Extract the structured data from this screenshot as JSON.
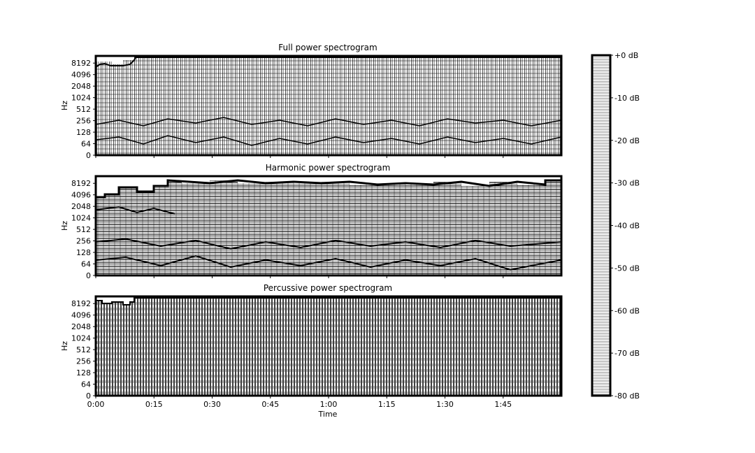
{
  "chart_data": {
    "type": "heatmap",
    "panels": [
      {
        "title": "Full power spectrogram",
        "ylabel": "Hz",
        "yticks": [
          "0",
          "64",
          "128",
          "256",
          "512",
          "1024",
          "2048",
          "4096",
          "8192"
        ],
        "xlabel": "",
        "xticks": []
      },
      {
        "title": "Harmonic power spectrogram",
        "ylabel": "Hz",
        "yticks": [
          "0",
          "64",
          "128",
          "256",
          "512",
          "1024",
          "2048",
          "4096",
          "8192"
        ],
        "xlabel": "",
        "xticks": []
      },
      {
        "title": "Percussive power spectrogram",
        "ylabel": "Hz",
        "yticks": [
          "0",
          "64",
          "128",
          "256",
          "512",
          "1024",
          "2048",
          "4096",
          "8192"
        ],
        "xlabel": "Time",
        "xticks": [
          "0:00",
          "0:15",
          "0:30",
          "0:45",
          "1:00",
          "1:15",
          "1:30",
          "1:45"
        ]
      }
    ],
    "x_range_seconds": [
      0,
      120
    ],
    "colorbar": {
      "ticks": [
        "+0 dB",
        "-10 dB",
        "-20 dB",
        "-30 dB",
        "-40 dB",
        "-50 dB",
        "-60 dB",
        "-70 dB",
        "-80 dB"
      ],
      "range_db": [
        -80,
        0
      ]
    },
    "colors": {
      "ink": "#000000",
      "paper": "#ffffff"
    }
  }
}
